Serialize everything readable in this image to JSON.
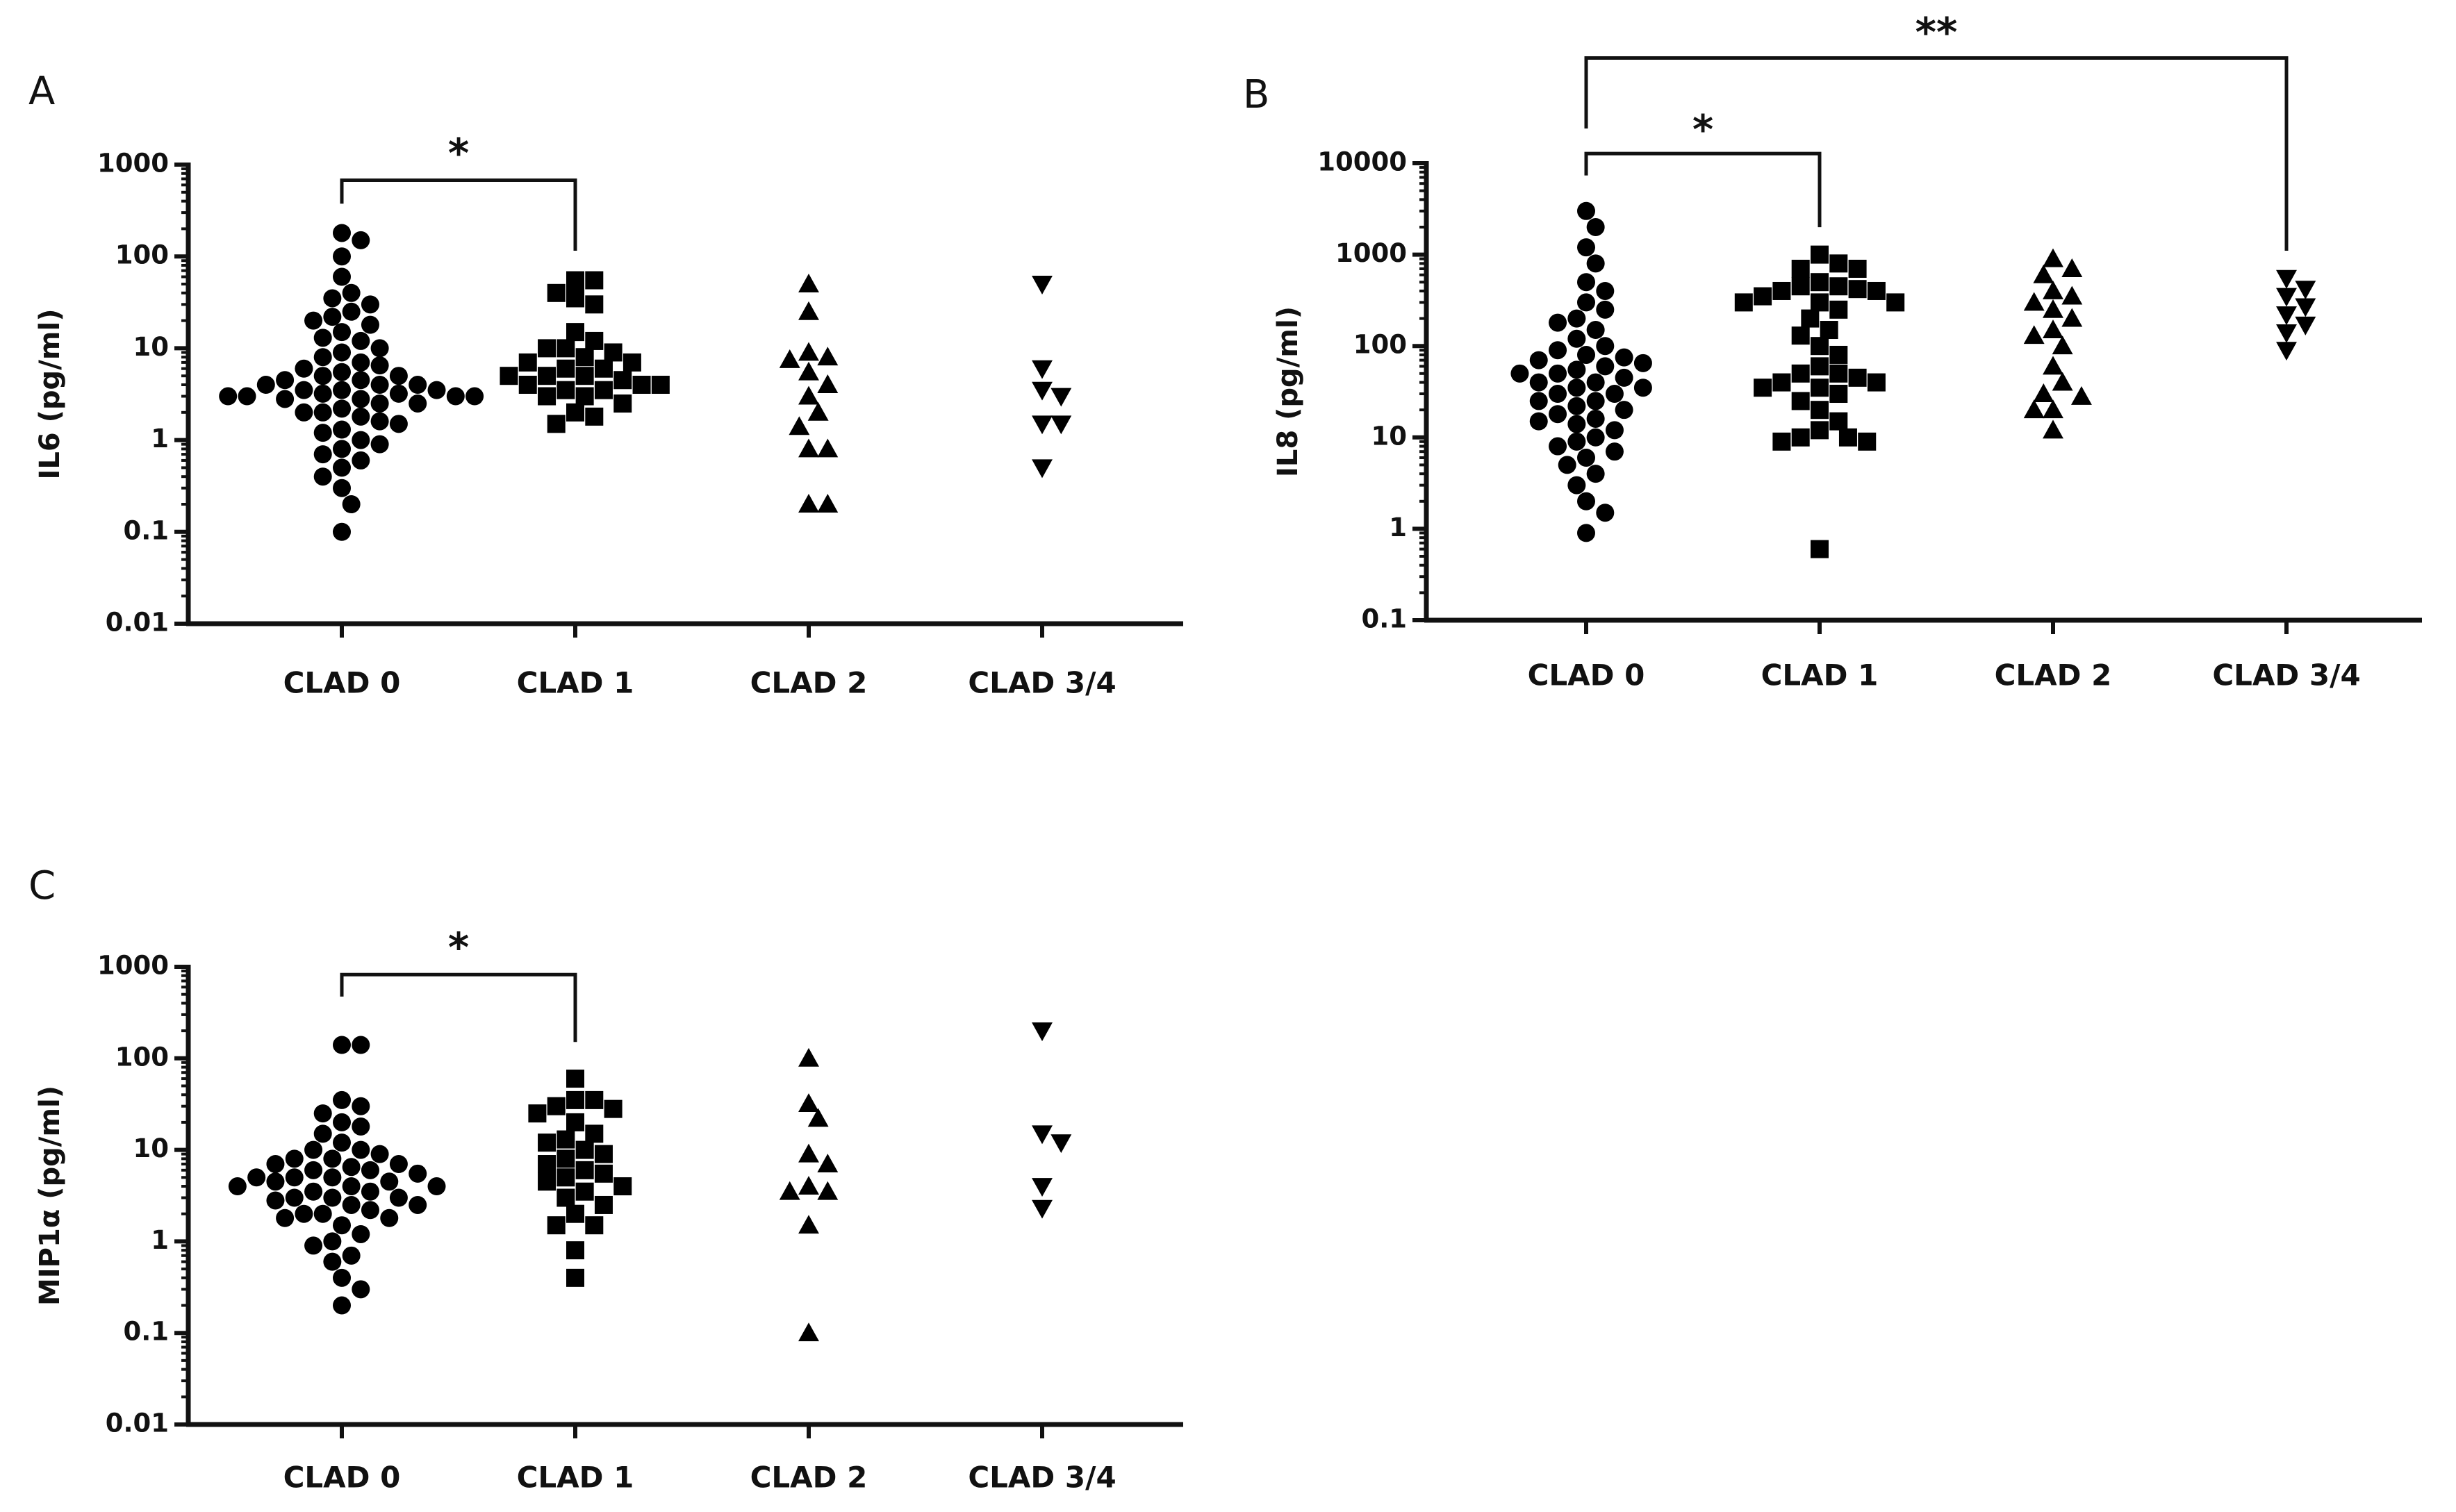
{
  "chart_data": [
    {
      "type": "scatter",
      "panel": "A",
      "ylabel": "IL6 (pg/ml)",
      "log": true,
      "categories": [
        "CLAD 0",
        "CLAD 1",
        "CLAD 2",
        "CLAD 3/4"
      ],
      "markers": [
        "circle",
        "square",
        "triangle",
        "triangle-down"
      ],
      "color": "#000000",
      "ylim": [
        0.01,
        1000
      ],
      "yticks": [
        0.01,
        0.1,
        1,
        10,
        100,
        1000
      ],
      "values": [
        [
          180,
          150,
          100,
          60,
          40,
          35,
          30,
          25,
          22,
          20,
          18,
          15,
          13,
          12,
          10,
          9,
          8,
          7,
          6.5,
          6,
          5.5,
          5,
          5,
          4.5,
          4.5,
          4,
          4,
          4,
          3.5,
          3.5,
          3.5,
          3.2,
          3.2,
          3,
          3,
          3,
          3,
          2.8,
          2.8,
          2.5,
          2.5,
          2.2,
          2,
          2,
          1.8,
          1.6,
          1.5,
          1.3,
          1.2,
          1,
          0.9,
          0.8,
          0.7,
          0.6,
          0.5,
          0.4,
          0.3,
          0.2,
          0.1
        ],
        [
          55,
          55,
          40,
          35,
          30,
          15,
          12,
          10,
          10,
          9,
          8,
          7,
          7,
          6,
          6,
          5,
          5,
          5,
          4.5,
          4,
          4,
          4,
          3.5,
          3.5,
          3,
          3,
          2.5,
          2,
          1.8,
          1.5
        ],
        [
          50,
          25,
          9,
          8,
          7.5,
          5.5,
          4,
          3,
          2,
          1.4,
          0.8,
          0.8,
          0.2,
          0.2
        ],
        [
          50,
          6,
          3.5,
          3,
          1.5,
          1.5,
          0.5
        ]
      ],
      "brackets": [
        {
          "from": 0,
          "to": 1,
          "label": "*"
        }
      ]
    },
    {
      "type": "scatter",
      "panel": "B",
      "ylabel": "IL8 (pg/ml)",
      "log": true,
      "categories": [
        "CLAD 0",
        "CLAD 1",
        "CLAD 2",
        "CLAD 3/4"
      ],
      "markers": [
        "circle",
        "square",
        "triangle",
        "triangle-down"
      ],
      "color": "#000000",
      "ylim": [
        0.1,
        10000
      ],
      "yticks": [
        0.1,
        1,
        10,
        100,
        1000,
        10000
      ],
      "values": [
        [
          3000,
          2000,
          1200,
          800,
          500,
          400,
          300,
          250,
          200,
          180,
          150,
          120,
          100,
          90,
          80,
          75,
          70,
          65,
          60,
          55,
          50,
          50,
          45,
          40,
          40,
          35,
          35,
          30,
          30,
          25,
          25,
          22,
          20,
          18,
          16,
          15,
          14,
          12,
          10,
          9,
          8,
          7,
          6,
          5,
          4,
          3,
          2,
          1.5,
          0.9
        ],
        [
          1000,
          800,
          700,
          700,
          500,
          450,
          450,
          420,
          400,
          400,
          350,
          300,
          300,
          300,
          250,
          200,
          150,
          130,
          100,
          80,
          60,
          50,
          50,
          45,
          40,
          40,
          35,
          35,
          30,
          25,
          20,
          15,
          12,
          10,
          10,
          9,
          9,
          0.6
        ],
        [
          900,
          700,
          600,
          400,
          350,
          300,
          250,
          200,
          150,
          130,
          100,
          60,
          40,
          30,
          28,
          20,
          20,
          12
        ],
        [
          550,
          420,
          350,
          270,
          220,
          170,
          140,
          90
        ]
      ],
      "brackets": [
        {
          "from": 0,
          "to": 1,
          "label": "*"
        },
        {
          "from": 0,
          "to": 3,
          "label": "**"
        }
      ]
    },
    {
      "type": "scatter",
      "panel": "C",
      "ylabel": "MIP1α (pg/ml)",
      "log": true,
      "categories": [
        "CLAD 0",
        "CLAD 1",
        "CLAD 2",
        "CLAD 3/4"
      ],
      "markers": [
        "circle",
        "square",
        "triangle",
        "triangle-down"
      ],
      "color": "#000000",
      "ylim": [
        0.01,
        1000
      ],
      "yticks": [
        0.01,
        0.1,
        1,
        10,
        100,
        1000
      ],
      "values": [
        [
          140,
          140,
          35,
          30,
          25,
          20,
          18,
          15,
          12,
          10,
          10,
          9,
          8,
          8,
          7,
          7,
          6.5,
          6,
          6,
          5.5,
          5,
          5,
          5,
          4.5,
          4.5,
          4,
          4,
          4,
          3.5,
          3.5,
          3,
          3,
          3,
          2.8,
          2.5,
          2.5,
          2.2,
          2,
          2,
          1.8,
          1.8,
          1.5,
          1.2,
          1,
          0.9,
          0.7,
          0.6,
          0.4,
          0.3,
          0.2
        ],
        [
          60,
          35,
          35,
          30,
          28,
          25,
          20,
          15,
          13,
          12,
          10,
          9,
          8,
          7,
          6,
          5.5,
          5,
          4.5,
          4,
          3.5,
          3,
          2.5,
          2,
          1.5,
          1.5,
          0.8,
          0.4
        ],
        [
          100,
          32,
          22,
          9,
          7,
          4,
          3.5,
          3.5,
          1.5,
          0.1
        ],
        [
          200,
          15,
          12,
          4,
          2.3
        ]
      ],
      "brackets": [
        {
          "from": 0,
          "to": 1,
          "label": "*"
        }
      ]
    }
  ]
}
